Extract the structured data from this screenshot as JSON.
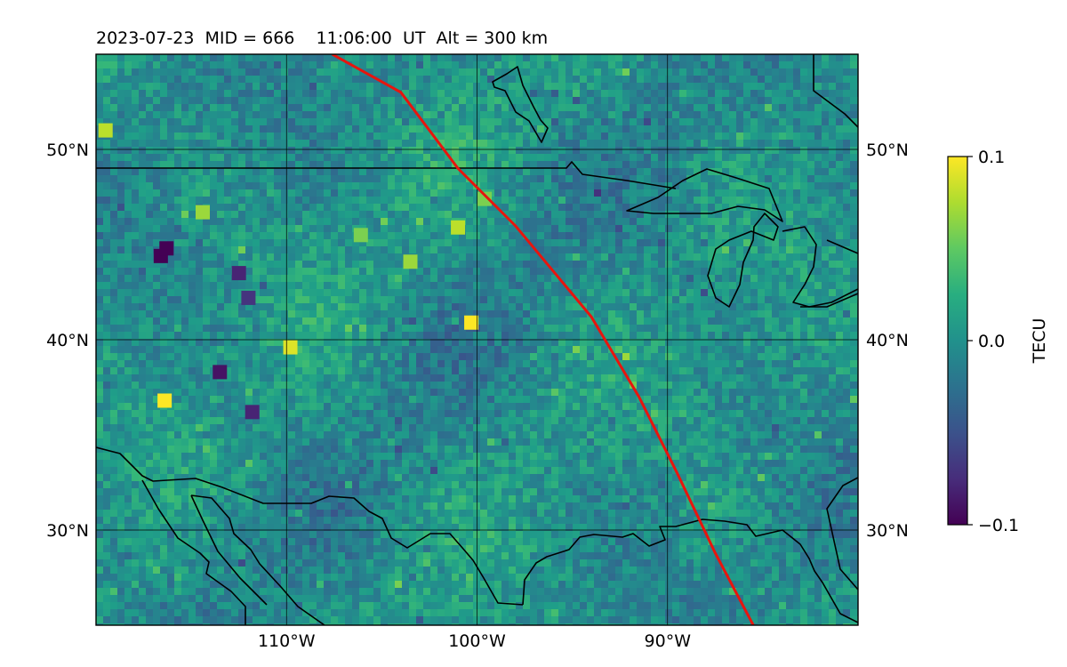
{
  "chart_data": {
    "type": "heatmap",
    "title": "2023-07-23  MID = 666    11:06:00  UT  Alt = 300 km",
    "xlim": [
      -120,
      -80
    ],
    "ylim": [
      25,
      55
    ],
    "xticks": [
      {
        "value": -110,
        "label": "110°W"
      },
      {
        "value": -100,
        "label": "100°W"
      },
      {
        "value": -90,
        "label": "90°W"
      }
    ],
    "yticks": [
      {
        "value": 30,
        "label": "30°N"
      },
      {
        "value": 40,
        "label": "40°N"
      },
      {
        "value": 50,
        "label": "50°N"
      }
    ],
    "colorbar": {
      "label": "TECU",
      "vmin": -0.1,
      "vmax": 0.1,
      "colormap": "viridis",
      "ticks": [
        {
          "value": 0.1,
          "label": "0.1"
        },
        {
          "value": 0.0,
          "label": "0.0"
        },
        {
          "value": -0.1,
          "label": "−0.1"
        }
      ]
    },
    "grid": true,
    "terminator_line": {
      "color": "#e8150e",
      "points": [
        [
          -107.6,
          55
        ],
        [
          -104,
          53
        ],
        [
          -101,
          49
        ],
        [
          -98,
          46
        ],
        [
          -94,
          41.2
        ],
        [
          -91.5,
          37
        ],
        [
          -89.5,
          33
        ],
        [
          -87.5,
          28.8
        ],
        [
          -85.5,
          25
        ]
      ]
    },
    "hotspots": [
      {
        "lon": -100.3,
        "lat": 40.9,
        "value": 0.1
      },
      {
        "lon": -116.4,
        "lat": 36.8,
        "value": 0.1
      },
      {
        "lon": -109.8,
        "lat": 39.6,
        "value": 0.09
      },
      {
        "lon": -116.6,
        "lat": 44.4,
        "value": -0.1
      },
      {
        "lon": -119.5,
        "lat": 51.0,
        "value": 0.08
      },
      {
        "lon": -114.4,
        "lat": 46.7,
        "value": 0.07
      },
      {
        "lon": -103.5,
        "lat": 44.1,
        "value": 0.07
      },
      {
        "lon": -101.0,
        "lat": 45.9,
        "value": 0.08
      },
      {
        "lon": -99.6,
        "lat": 47.4,
        "value": 0.06
      },
      {
        "lon": -106.1,
        "lat": 45.5,
        "value": 0.06
      },
      {
        "lon": -116.3,
        "lat": 44.8,
        "value": -0.1
      },
      {
        "lon": -112.5,
        "lat": 43.5,
        "value": -0.08
      },
      {
        "lon": -113.5,
        "lat": 38.3,
        "value": -0.09
      },
      {
        "lon": -111.8,
        "lat": 36.2,
        "value": -0.08
      },
      {
        "lon": -112.0,
        "lat": 42.2,
        "value": -0.07
      }
    ]
  }
}
